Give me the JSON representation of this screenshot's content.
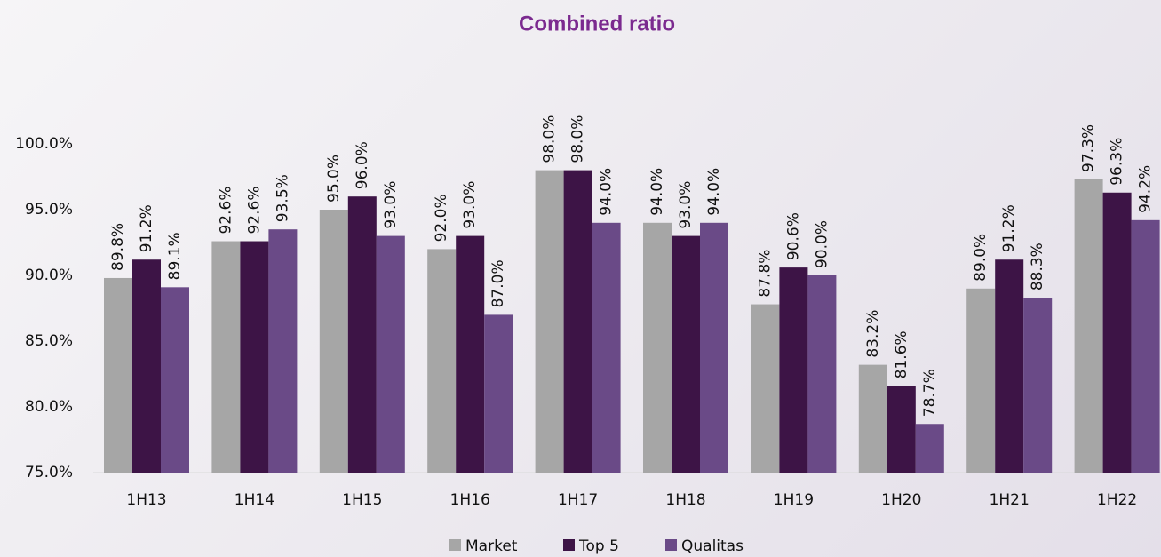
{
  "chart_data": {
    "type": "bar",
    "title": "Combined ratio",
    "categories": [
      "1H13",
      "1H14",
      "1H15",
      "1H16",
      "1H17",
      "1H18",
      "1H19",
      "1H20",
      "1H21",
      "1H22"
    ],
    "series": [
      {
        "name": "Market",
        "color": "#a6a6a6",
        "values": [
          89.8,
          92.6,
          95.0,
          92.0,
          98.0,
          94.0,
          87.8,
          83.2,
          89.0,
          97.3
        ],
        "value_labels": [
          "89.8%",
          "92.6%",
          "95.0%",
          "92.0%",
          "98.0%",
          "94.0%",
          "87.8%",
          "83.2%",
          "89.0%",
          "97.3%"
        ]
      },
      {
        "name": "Top 5",
        "color": "#3d1446",
        "values": [
          91.2,
          92.6,
          96.0,
          93.0,
          98.0,
          93.0,
          90.6,
          81.6,
          91.2,
          96.3
        ],
        "value_labels": [
          "91.2%",
          "92.6%",
          "96.0%",
          "93.0%",
          "98.0%",
          "93.0%",
          "90.6%",
          "81.6%",
          "91.2%",
          "96.3%"
        ]
      },
      {
        "name": "Qualitas",
        "color": "#6a4a87",
        "values": [
          89.1,
          93.5,
          93.0,
          87.0,
          94.0,
          94.0,
          90.0,
          78.7,
          88.3,
          94.2
        ],
        "value_labels": [
          "89.1%",
          "93.5%",
          "93.0%",
          "87.0%",
          "94.0%",
          "94.0%",
          "90.0%",
          "78.7%",
          "88.3%",
          "94.2%"
        ]
      }
    ],
    "ylim": [
      75,
      105
    ],
    "yticks": [
      {
        "value": 75,
        "label": "75.0%"
      },
      {
        "value": 80,
        "label": "80.0%"
      },
      {
        "value": 85,
        "label": "85.0%"
      },
      {
        "value": 90,
        "label": "90.0%"
      },
      {
        "value": 95,
        "label": "95.0%"
      },
      {
        "value": 100,
        "label": "100.0%"
      }
    ],
    "grid": false,
    "legend": "bottom"
  }
}
